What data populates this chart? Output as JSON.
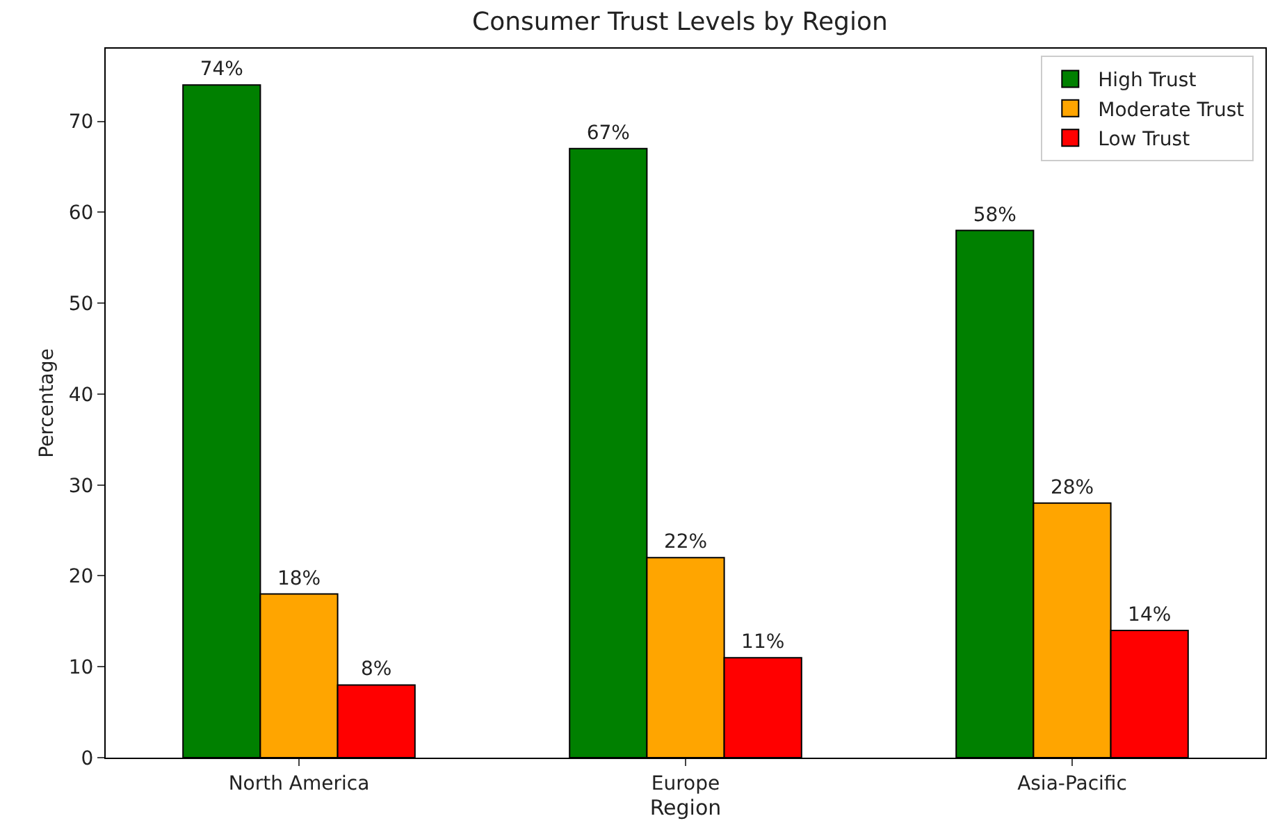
{
  "chart_data": {
    "type": "bar",
    "title": "Consumer Trust Levels by Region",
    "xlabel": "Region",
    "ylabel": "Percentage",
    "categories": [
      "North America",
      "Europe",
      "Asia-Pacific"
    ],
    "series": [
      {
        "name": "High Trust",
        "color": "#008000",
        "values": [
          74,
          67,
          58
        ],
        "value_labels": [
          "74%",
          "67%",
          "58%"
        ]
      },
      {
        "name": "Moderate Trust",
        "color": "#ffa500",
        "values": [
          18,
          22,
          28
        ],
        "value_labels": [
          "18%",
          "22%",
          "28%"
        ]
      },
      {
        "name": "Low Trust",
        "color": "#ff0000",
        "values": [
          8,
          11,
          14
        ],
        "value_labels": [
          "8%",
          "11%",
          "14%"
        ]
      }
    ],
    "ylim": [
      0,
      78
    ],
    "yticks": [
      0,
      10,
      20,
      30,
      40,
      50,
      60,
      70
    ],
    "grid": false,
    "legend": "top right"
  }
}
